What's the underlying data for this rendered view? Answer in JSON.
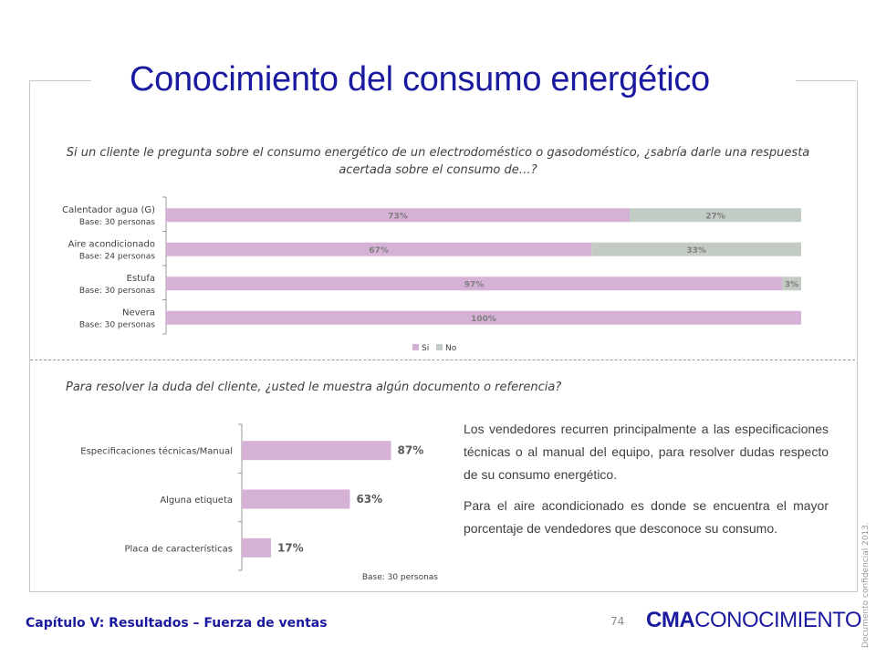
{
  "title": "Conocimiento del consumo energético",
  "question1": "Si un cliente le pregunta sobre el consumo energético de un electrodoméstico o gasodoméstico, ¿sabría darle una respuesta acertada sobre el consumo de…?",
  "question2": "Para resolver la duda del cliente, ¿usted le muestra algún documento o referencia?",
  "body_paragraphs": [
    "Los vendedores recurren principalmente a las especificaciones técnicas o al manual del equipo, para resolver dudas respecto de su consumo energético.",
    "Para el aire acondicionado es donde se encuentra el mayor porcentaje de vendedores que desconoce su consumo."
  ],
  "footer": {
    "chapter": "Capítulo V: Resultados – Fuerza de ventas",
    "page": "74",
    "logo_bold": "CMA",
    "logo_rest": "CONOCIMIENTO",
    "confidential": "Documento confidencial 2013."
  },
  "colors": {
    "title": "#1a1aa0",
    "si": "#d5b1d6",
    "no": "#c2cbc4",
    "bar2": "#d5b1d6"
  },
  "chart_data": [
    {
      "type": "bar",
      "orientation": "horizontal-stacked",
      "categories": [
        "Calentador agua (G)",
        "Aire acondicionado",
        "Estufa",
        "Nevera"
      ],
      "bases": [
        "Base: 30 personas",
        "Base: 24 personas",
        "Base: 30 personas",
        "Base: 30 personas"
      ],
      "series": [
        {
          "name": "Si",
          "values": [
            73,
            67,
            97,
            100
          ],
          "labels": [
            "73%",
            "67%",
            "97%",
            "100%"
          ]
        },
        {
          "name": "No",
          "values": [
            27,
            33,
            3,
            0
          ],
          "labels": [
            "27%",
            "33%",
            "3%",
            ""
          ]
        }
      ],
      "xlim": [
        0,
        100
      ],
      "legend": "bottom"
    },
    {
      "type": "bar",
      "orientation": "horizontal",
      "categories": [
        "Especificaciones técnicas/Manual",
        "Alguna etiqueta",
        "Placa de características"
      ],
      "values": [
        87,
        63,
        17
      ],
      "labels": [
        "87%",
        "63%",
        "17%"
      ],
      "xlim": [
        0,
        100
      ],
      "note": "Base: 30 personas"
    }
  ]
}
